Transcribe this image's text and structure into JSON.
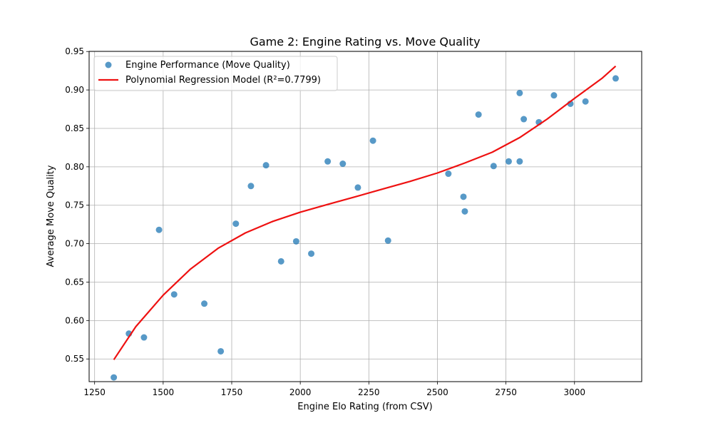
{
  "chart_data": {
    "type": "scatter",
    "title": "Game 2: Engine Rating vs. Move Quality",
    "xlabel": "Engine Elo Rating (from CSV)",
    "ylabel": "Average Move Quality",
    "xlim": [
      1230,
      3245
    ],
    "ylim": [
      0.5205,
      0.9502
    ],
    "x_ticks": [
      1250,
      1500,
      1750,
      2000,
      2250,
      2500,
      2750,
      3000
    ],
    "x_tick_labels": [
      "1250",
      "1500",
      "1750",
      "2000",
      "2250",
      "2500",
      "2750",
      "3000"
    ],
    "y_ticks": [
      0.55,
      0.6,
      0.65,
      0.7,
      0.75,
      0.8,
      0.85,
      0.9,
      0.95
    ],
    "y_tick_labels": [
      "0.55",
      "0.60",
      "0.65",
      "0.70",
      "0.75",
      "0.80",
      "0.85",
      "0.90",
      "0.95"
    ],
    "grid": true,
    "legend_position": "top-left",
    "series": [
      {
        "name": "Engine Performance (Move Quality)",
        "kind": "scatter",
        "color": "#1f77b4",
        "points": [
          [
            1320,
            0.526
          ],
          [
            1375,
            0.583
          ],
          [
            1430,
            0.578
          ],
          [
            1485,
            0.718
          ],
          [
            1540,
            0.634
          ],
          [
            1650,
            0.622
          ],
          [
            1710,
            0.56
          ],
          [
            1765,
            0.726
          ],
          [
            1820,
            0.775
          ],
          [
            1875,
            0.802
          ],
          [
            1930,
            0.677
          ],
          [
            1985,
            0.703
          ],
          [
            2040,
            0.687
          ],
          [
            2100,
            0.807
          ],
          [
            2155,
            0.804
          ],
          [
            2210,
            0.773
          ],
          [
            2265,
            0.834
          ],
          [
            2320,
            0.704
          ],
          [
            2540,
            0.791
          ],
          [
            2595,
            0.761
          ],
          [
            2600,
            0.742
          ],
          [
            2650,
            0.868
          ],
          [
            2705,
            0.801
          ],
          [
            2760,
            0.807
          ],
          [
            2800,
            0.807
          ],
          [
            2800,
            0.896
          ],
          [
            2815,
            0.862
          ],
          [
            2870,
            0.858
          ],
          [
            2925,
            0.893
          ],
          [
            2985,
            0.882
          ],
          [
            3040,
            0.885
          ],
          [
            3150,
            0.915
          ]
        ]
      },
      {
        "name": "Polynomial Regression Model (R²=0.7799)",
        "kind": "line",
        "color": "#ee1111",
        "points": [
          [
            1320,
            0.549
          ],
          [
            1400,
            0.592
          ],
          [
            1500,
            0.633
          ],
          [
            1600,
            0.667
          ],
          [
            1700,
            0.694
          ],
          [
            1800,
            0.714
          ],
          [
            1900,
            0.729
          ],
          [
            2000,
            0.741
          ],
          [
            2100,
            0.751
          ],
          [
            2200,
            0.761
          ],
          [
            2300,
            0.771
          ],
          [
            2400,
            0.781
          ],
          [
            2500,
            0.792
          ],
          [
            2600,
            0.805
          ],
          [
            2700,
            0.819
          ],
          [
            2800,
            0.838
          ],
          [
            2900,
            0.862
          ],
          [
            3000,
            0.889
          ],
          [
            3100,
            0.915
          ],
          [
            3150,
            0.931
          ]
        ]
      }
    ]
  }
}
